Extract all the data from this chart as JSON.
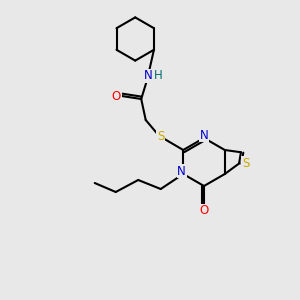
{
  "background_color": "#e8e8e8",
  "atom_colors": {
    "C": "#000000",
    "N": "#0000cc",
    "O": "#ff0000",
    "S": "#ccaa00",
    "H": "#007070"
  },
  "lw": 1.5,
  "fontsize": 8.5
}
